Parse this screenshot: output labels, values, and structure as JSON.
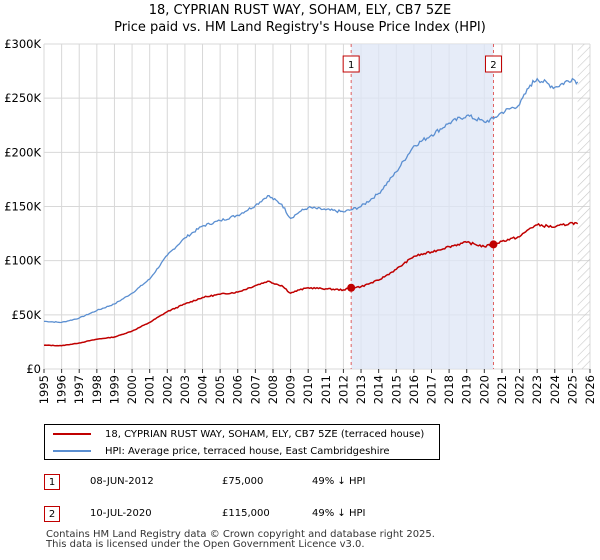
{
  "title_line1": "18, CYPRIAN RUST WAY, SOHAM, ELY, CB7 5ZE",
  "title_line2": "Price paid vs. HM Land Registry's House Price Index (HPI)",
  "colors": {
    "property": "#c00000",
    "hpi": "#5b8fd1",
    "shade": "#dde5f5",
    "grid": "#d8d8d8",
    "marker_line": "#e06060",
    "hatch": "#c8c8c8"
  },
  "chart_data": {
    "type": "line",
    "title": "Price paid vs. HM Land Registry's House Price Index (HPI)",
    "xlabel": "",
    "ylabel": "",
    "xlim": [
      1995.0,
      2026.0
    ],
    "ylim": [
      0,
      300000
    ],
    "y_ticks": [
      0,
      50000,
      100000,
      150000,
      200000,
      250000,
      300000
    ],
    "y_tick_labels": [
      "£0",
      "£50K",
      "£100K",
      "£150K",
      "£200K",
      "£250K",
      "£300K"
    ],
    "x_ticks": [
      1995,
      1996,
      1997,
      1998,
      1999,
      2000,
      2001,
      2002,
      2003,
      2004,
      2005,
      2006,
      2007,
      2008,
      2009,
      2010,
      2011,
      2012,
      2013,
      2014,
      2015,
      2016,
      2017,
      2018,
      2019,
      2020,
      2021,
      2022,
      2023,
      2024,
      2025,
      2026
    ],
    "shaded_range": [
      2012.44,
      2020.52
    ],
    "future_hatch_from": 2025.3,
    "series": [
      {
        "name": "18, CYPRIAN RUST WAY, SOHAM, ELY, CB7 5ZE (terraced house)",
        "x": [
          1995.0,
          1996.0,
          1997.0,
          1998.0,
          1999.0,
          2000.0,
          2001.0,
          2002.0,
          2003.0,
          2004.0,
          2005.0,
          2006.0,
          2007.0,
          2007.7,
          2008.5,
          2009.0,
          2009.5,
          2010.0,
          2011.0,
          2012.0,
          2012.44,
          2013.0,
          2014.0,
          2015.0,
          2016.0,
          2017.0,
          2018.0,
          2019.0,
          2020.0,
          2020.52,
          2021.0,
          2022.0,
          2022.6,
          2023.0,
          2024.0,
          2025.0,
          2025.3
        ],
        "values": [
          22000,
          21500,
          24000,
          27500,
          29500,
          35000,
          43000,
          53000,
          60000,
          66000,
          69000,
          71000,
          77000,
          81000,
          77000,
          70000,
          73000,
          75000,
          74000,
          73000,
          75000,
          76000,
          82000,
          92000,
          104000,
          108000,
          113000,
          117000,
          113000,
          115000,
          118000,
          122000,
          130000,
          133000,
          131000,
          135000,
          134000
        ]
      },
      {
        "name": "HPI: Average price, terraced house, East Cambridgeshire",
        "x": [
          1995.0,
          1996.0,
          1997.0,
          1998.0,
          1999.0,
          2000.0,
          2001.0,
          2002.0,
          2003.0,
          2004.0,
          2005.0,
          2006.0,
          2007.0,
          2007.7,
          2008.5,
          2009.0,
          2009.5,
          2010.0,
          2011.0,
          2012.0,
          2012.44,
          2013.0,
          2014.0,
          2015.0,
          2016.0,
          2017.0,
          2018.0,
          2019.0,
          2020.0,
          2020.52,
          2021.0,
          2022.0,
          2022.6,
          2023.0,
          2024.0,
          2025.0,
          2025.3
        ],
        "values": [
          44000,
          43000,
          47000,
          54000,
          60000,
          70000,
          83000,
          105000,
          121000,
          132000,
          137000,
          142000,
          151000,
          160000,
          152000,
          139000,
          145000,
          149000,
          147000,
          145000,
          147000,
          150000,
          162000,
          182000,
          206000,
          216000,
          227000,
          234000,
          228000,
          231000,
          237000,
          244000,
          262000,
          268000,
          260000,
          268000,
          265000
        ]
      }
    ],
    "sales": [
      {
        "label": "1",
        "x": 2012.44,
        "price": 75000
      },
      {
        "label": "2",
        "x": 2020.52,
        "price": 115000
      }
    ]
  },
  "legend": {
    "property": "18, CYPRIAN RUST WAY, SOHAM, ELY, CB7 5ZE (terraced house)",
    "hpi": "HPI: Average price, terraced house, East Cambridgeshire"
  },
  "sales_table": [
    {
      "label": "1",
      "date": "08-JUN-2012",
      "price": "£75,000",
      "hpi": "49% ↓ HPI"
    },
    {
      "label": "2",
      "date": "10-JUL-2020",
      "price": "£115,000",
      "hpi": "49% ↓ HPI"
    }
  ],
  "footer": {
    "line1": "Contains HM Land Registry data © Crown copyright and database right 2025.",
    "line2": "This data is licensed under the Open Government Licence v3.0."
  }
}
